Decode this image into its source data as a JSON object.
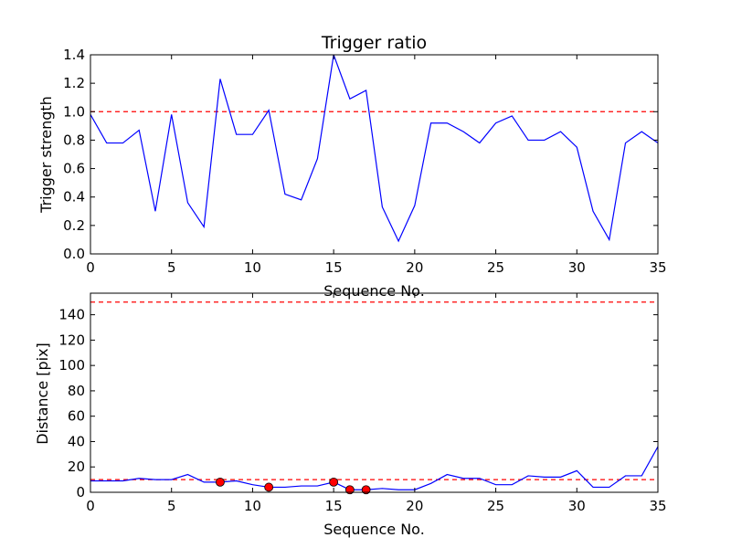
{
  "chart_data": [
    {
      "type": "line",
      "title": "Trigger ratio",
      "xlabel": "Sequence No.",
      "ylabel": "Trigger strength",
      "xlim": [
        0,
        35
      ],
      "ylim": [
        0,
        1.4
      ],
      "xticks": [
        0,
        5,
        10,
        15,
        20,
        25,
        30,
        35
      ],
      "yticks": [
        0.0,
        0.2,
        0.4,
        0.6,
        0.8,
        1.0,
        1.2,
        1.4
      ],
      "ytick_labels": [
        "0.0",
        "0.2",
        "0.4",
        "0.6",
        "0.8",
        "1.0",
        "1.2",
        "1.4"
      ],
      "grid": false,
      "x": [
        0,
        1,
        2,
        3,
        4,
        5,
        6,
        7,
        8,
        9,
        10,
        11,
        12,
        13,
        14,
        15,
        16,
        17,
        18,
        19,
        20,
        21,
        22,
        23,
        24,
        25,
        26,
        27,
        28,
        29,
        30,
        31,
        32,
        33,
        34,
        35
      ],
      "series": [
        {
          "values": [
            0.98,
            0.78,
            0.78,
            0.87,
            0.3,
            0.98,
            0.36,
            0.19,
            1.23,
            0.84,
            0.84,
            1.01,
            0.42,
            0.38,
            0.67,
            1.4,
            1.09,
            1.15,
            0.33,
            0.09,
            0.34,
            0.92,
            0.92,
            0.86,
            0.78,
            0.92,
            0.97,
            0.8,
            0.8,
            0.86,
            0.75,
            0.3,
            0.1,
            0.78,
            0.86,
            0.78
          ],
          "color": "#0000ff",
          "style": "solid"
        }
      ],
      "reference_lines": [
        {
          "y": 1.0,
          "color": "#ff0000",
          "style": "dashed"
        }
      ]
    },
    {
      "type": "line",
      "title": "",
      "xlabel": "Sequence No.",
      "ylabel": "Distance [pix]",
      "xlim": [
        0,
        35
      ],
      "ylim": [
        0,
        157
      ],
      "xticks": [
        0,
        5,
        10,
        15,
        20,
        25,
        30,
        35
      ],
      "yticks": [
        0,
        20,
        40,
        60,
        80,
        100,
        120,
        140
      ],
      "ytick_labels": [
        "0",
        "20",
        "40",
        "60",
        "80",
        "100",
        "120",
        "140"
      ],
      "grid": false,
      "x": [
        0,
        1,
        2,
        3,
        4,
        5,
        6,
        7,
        8,
        9,
        10,
        11,
        12,
        13,
        14,
        15,
        16,
        17,
        18,
        19,
        20,
        21,
        22,
        23,
        24,
        25,
        26,
        27,
        28,
        29,
        30,
        31,
        32,
        33,
        34,
        35
      ],
      "series": [
        {
          "values": [
            9,
            9,
            9,
            11,
            10,
            10,
            14,
            8,
            8,
            9,
            6,
            4,
            4,
            5,
            5,
            8,
            2,
            2,
            3,
            2,
            2,
            7,
            14,
            11,
            11,
            6,
            6,
            13,
            12,
            12,
            17,
            4,
            4,
            13,
            13,
            36
          ],
          "color": "#0000ff",
          "style": "solid"
        }
      ],
      "highlight_points": {
        "x": [
          8,
          11,
          15,
          16,
          17
        ],
        "y": [
          8,
          4,
          8,
          2,
          2
        ],
        "color": "#ff0000"
      },
      "reference_lines": [
        {
          "y": 150,
          "color": "#ff0000",
          "style": "dashed"
        },
        {
          "y": 10,
          "color": "#ff0000",
          "style": "dashed"
        }
      ]
    }
  ]
}
